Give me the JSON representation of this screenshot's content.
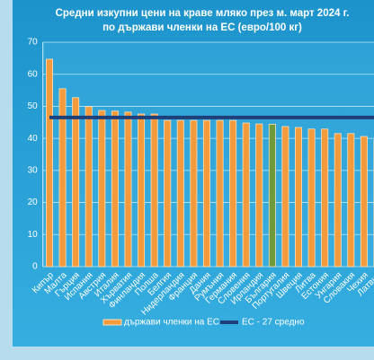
{
  "chart_data": {
    "type": "bar",
    "title": [
      "Средни изкупни цени на краве мляко през м. март 2024  г.",
      "по държави членки на ЕС (евро/100 кг)"
    ],
    "categories": [
      "Кипър",
      "Малта",
      "Гърция",
      "Испания",
      "Австрия",
      "Италия",
      "Хърватия",
      "Финландия",
      "Полша",
      "Белгия",
      "Нидерландия",
      "Франция",
      "Дания",
      "Румъния",
      "Германия",
      "Словения",
      "Ирландия",
      "България",
      "Португалия",
      "Швеция",
      "Литва",
      "Естония",
      "Унгария",
      "Словакия",
      "Чехия",
      "Латвия"
    ],
    "series": [
      {
        "name": "държави членки на ЕС",
        "color": "#f39a3c",
        "colors": [
          "#f39a3c",
          "#f39a3c",
          "#f39a3c",
          "#f39a3c",
          "#f39a3c",
          "#f39a3c",
          "#f39a3c",
          "#f39a3c",
          "#f39a3c",
          "#f39a3c",
          "#f39a3c",
          "#f39a3c",
          "#f39a3c",
          "#f39a3c",
          "#f39a3c",
          "#f39a3c",
          "#f39a3c",
          "#6f9a3c",
          "#f39a3c",
          "#f39a3c",
          "#f39a3c",
          "#f39a3c",
          "#f39a3c",
          "#f39a3c",
          "#f39a3c",
          "#f39a3c"
        ],
        "values": [
          64.7,
          55.5,
          52.7,
          49.9,
          48.7,
          48.5,
          48.2,
          47.6,
          47.6,
          45.6,
          45.6,
          45.6,
          45.6,
          45.6,
          45.6,
          44.8,
          44.5,
          44.4,
          43.7,
          43.4,
          42.9,
          42.9,
          41.5,
          41.5,
          40.6,
          39.5
        ]
      }
    ],
    "average": {
      "name": "ЕС - 27 средно",
      "value": 46.5,
      "color": "#1f3f7a"
    },
    "ylim": [
      0,
      70
    ],
    "yticks": [
      0,
      10,
      20,
      30,
      40,
      50,
      60,
      70
    ],
    "grid": true
  }
}
